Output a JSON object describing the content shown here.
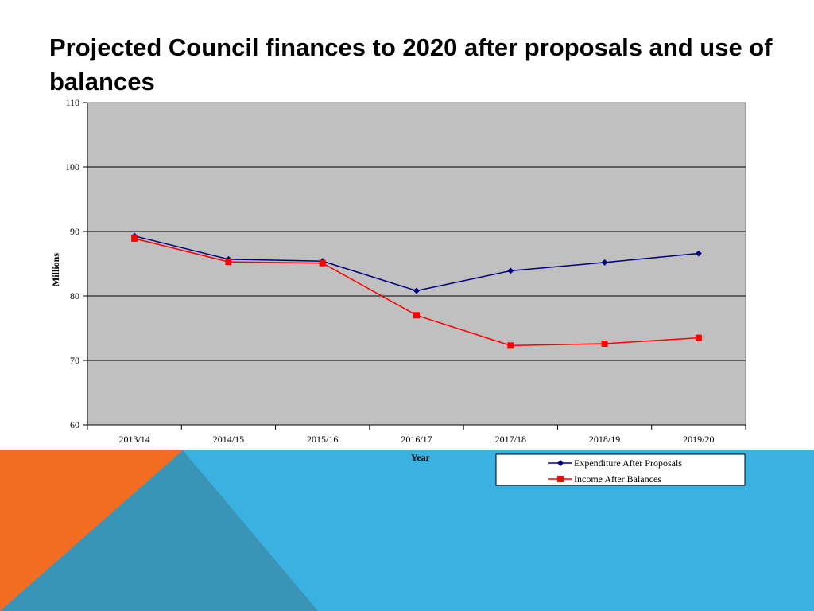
{
  "slide": {
    "title": "Projected Council finances to 2020 after proposals and use of balances"
  },
  "colors": {
    "background": "#ffffff",
    "plot_area": "#c0c0c0",
    "band_blue": "#3ab1e0",
    "band_orange": "#f26c21",
    "band_teal": "#3a94b6",
    "expenditure": "#000080",
    "income": "#ff0000"
  },
  "chart_data": {
    "type": "line",
    "title": "",
    "xlabel": "Year",
    "ylabel": "Millions",
    "categories": [
      "2013/14",
      "2014/15",
      "2015/16",
      "2016/17",
      "2017/18",
      "2018/19",
      "2019/20"
    ],
    "ylim": [
      60,
      110
    ],
    "yticks": [
      60,
      70,
      80,
      90,
      100,
      110
    ],
    "grid": true,
    "legend_position": "bottom-right",
    "series": [
      {
        "name": "Expenditure After Proposals",
        "marker": "diamond",
        "color": "#000080",
        "values": [
          89.3,
          85.7,
          85.4,
          80.8,
          83.9,
          85.2,
          86.6
        ]
      },
      {
        "name": "Income After Balances",
        "marker": "square",
        "color": "#ff0000",
        "values": [
          88.9,
          85.3,
          85.1,
          77.0,
          72.3,
          72.6,
          73.5
        ]
      }
    ]
  }
}
